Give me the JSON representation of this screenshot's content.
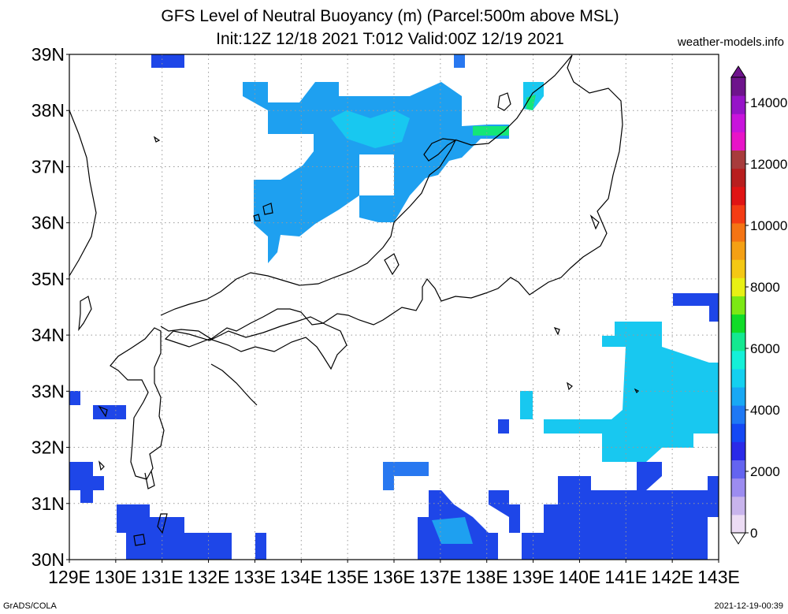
{
  "title_line1": "GFS Level of Neutral Buoyancy (m) (Parcel:500m above MSL)",
  "title_line2": "Init:12Z 12/18 2021 T:012 Valid:00Z 12/19 2021",
  "site": "weather-models.info",
  "credit": "GrADS/COLA",
  "timestamp": "2021-12-19-00:39",
  "lat_labels": [
    "39N",
    "38N",
    "37N",
    "36N",
    "35N",
    "34N",
    "33N",
    "32N",
    "31N",
    "30N"
  ],
  "lon_labels": [
    "129E",
    "130E",
    "131E",
    "132E",
    "133E",
    "134E",
    "135E",
    "136E",
    "137E",
    "138E",
    "139E",
    "140E",
    "141E",
    "142E",
    "143E"
  ],
  "colorbar": {
    "labels": [
      "14000",
      "12000",
      "10000",
      "8000",
      "6000",
      "4000",
      "2000",
      "0"
    ],
    "colors": [
      "#ecdcf4",
      "#c8b4ec",
      "#9c8cf0",
      "#6464f0",
      "#2a2ae8",
      "#1448f4",
      "#1e78f4",
      "#18a8f4",
      "#14d0f0",
      "#14f0d8",
      "#14e890",
      "#10dc28",
      "#7ce814",
      "#e8f014",
      "#f4c814",
      "#f4a014",
      "#f47414",
      "#f43c14",
      "#e01414",
      "#b81e1e",
      "#a83c3c",
      "#e814c8",
      "#c814dc",
      "#9614c8",
      "#6e148c"
    ]
  },
  "palette": {
    "blue": "#1e46e8",
    "midblue": "#2878f0",
    "lightblue": "#1ea0f0",
    "cyan": "#18c8f0",
    "aqua": "#14e6d2",
    "green": "#14e678"
  }
}
